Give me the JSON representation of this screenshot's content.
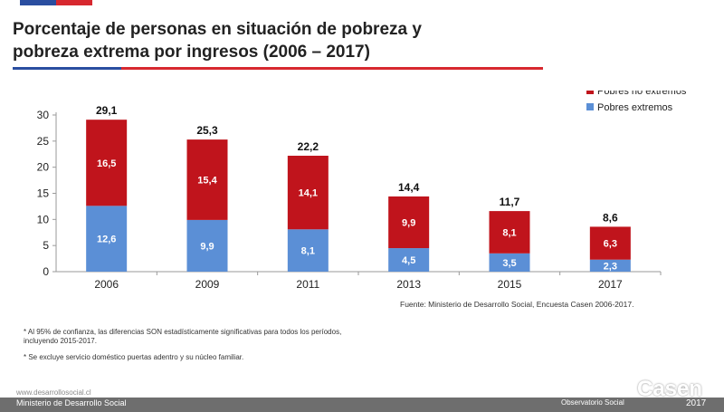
{
  "header": {
    "title_line1": "Porcentaje de personas en situación de pobreza y",
    "title_line2": "pobreza extrema por ingresos (2006 – 2017)"
  },
  "colors": {
    "no_extremos": "#c0141c",
    "extremos": "#5b8fd6",
    "flag_blue": "#2a4ea0",
    "flag_red": "#d7282f"
  },
  "chart_data": {
    "type": "bar",
    "stacked": true,
    "categories": [
      "2006",
      "2009",
      "2011",
      "2013",
      "2015",
      "2017"
    ],
    "series": [
      {
        "name": "Pobres extremos",
        "values": [
          12.6,
          9.9,
          8.1,
          4.5,
          3.5,
          2.3
        ],
        "labels": [
          "12,6",
          "9,9",
          "8,1",
          "4,5",
          "3,5",
          "2,3"
        ]
      },
      {
        "name": "Pobres no extremos",
        "values": [
          16.5,
          15.4,
          14.1,
          9.9,
          8.1,
          6.3
        ],
        "labels": [
          "16,5",
          "15,4",
          "14,1",
          "9,9",
          "8,1",
          "6,3"
        ]
      }
    ],
    "totals": [
      29.1,
      25.3,
      22.2,
      14.4,
      11.7,
      8.6
    ],
    "total_labels": [
      "29,1",
      "25,3",
      "22,2",
      "14,4",
      "11,7",
      "8,6"
    ],
    "yticks": [
      "0",
      "5",
      "10",
      "15",
      "20",
      "25",
      "30"
    ],
    "ylim": [
      0,
      30
    ],
    "legend_position": "top-right",
    "grid": false
  },
  "source": "Fuente: Ministerio de Desarrollo Social, Encuesta Casen 2006-2017.",
  "notes": [
    "* Al 95% de confianza, las diferencias SON estadísticamente significativas para todos los períodos, incluyendo 2015-2017.",
    "* Se excluye servicio doméstico puertas adentro y su núcleo familiar."
  ],
  "footer": {
    "url": "www.desarrollosocial.cl",
    "ministry": "Ministerio de Desarrollo Social",
    "observatorio": "Observatorio Social",
    "brand": "Casen",
    "year": "2017"
  }
}
